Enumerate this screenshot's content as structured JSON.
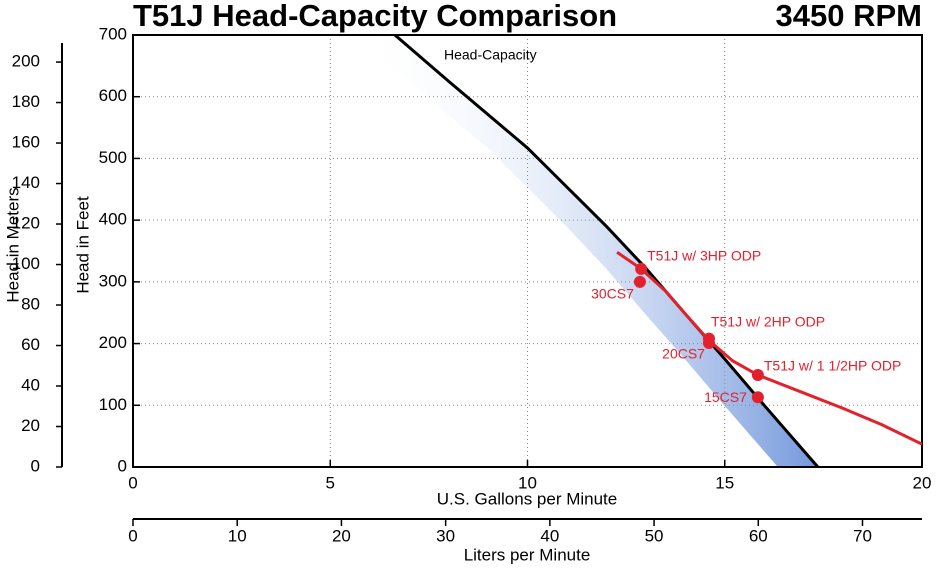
{
  "chart_data": {
    "type": "line",
    "title": "T51J Head-Capacity Comparison",
    "subtitle": "3450 RPM",
    "x_label": "U.S. Gallons per Minute",
    "y_label": "Head in Feet",
    "y_meters_label": "Head in Meters",
    "x_liters_label": "Liters per Minute",
    "xlim": [
      0,
      20
    ],
    "xticks": [
      0,
      5,
      10,
      15,
      20
    ],
    "ylim": [
      0,
      700
    ],
    "yticks": [
      0,
      100,
      200,
      300,
      400,
      500,
      600,
      700
    ],
    "y_meters_lim": [
      0,
      213.36
    ],
    "y_meters_ticks": [
      0,
      20,
      40,
      60,
      80,
      100,
      120,
      140,
      160,
      180,
      200
    ],
    "x_liters_lim": [
      0,
      75.71
    ],
    "x_liters_ticks": [
      0,
      10,
      20,
      30,
      40,
      50,
      60,
      70
    ],
    "grid": true,
    "series": [
      {
        "name": "Head-Capacity",
        "color": "#000000",
        "x": [
          6.64,
          8,
          10,
          12,
          13,
          14,
          15,
          16,
          17.36
        ],
        "values": [
          700,
          625,
          517,
          390,
          322,
          248,
          175,
          100,
          0
        ]
      },
      {
        "color": "#e3212d",
        "x": [
          12.27,
          12.88,
          13.5,
          14,
          14.6,
          15.2,
          15.84,
          17,
          18,
          19,
          20
        ],
        "values": [
          348,
          321,
          285,
          248,
          205,
          172,
          149,
          120,
          95,
          68,
          37
        ]
      }
    ],
    "points": {
      "color": "#e3212d",
      "labels": [
        "T51J w/ 3HP ODP",
        "30CS7",
        "T51J w/ 2HP ODP",
        "20CS7",
        "T51J w/ 1 1/2HP ODP",
        "15CS7"
      ],
      "x": [
        12.88,
        12.85,
        14.6,
        14.6,
        15.84,
        15.84
      ],
      "values": [
        321,
        300,
        208,
        201,
        149,
        113
      ]
    }
  }
}
